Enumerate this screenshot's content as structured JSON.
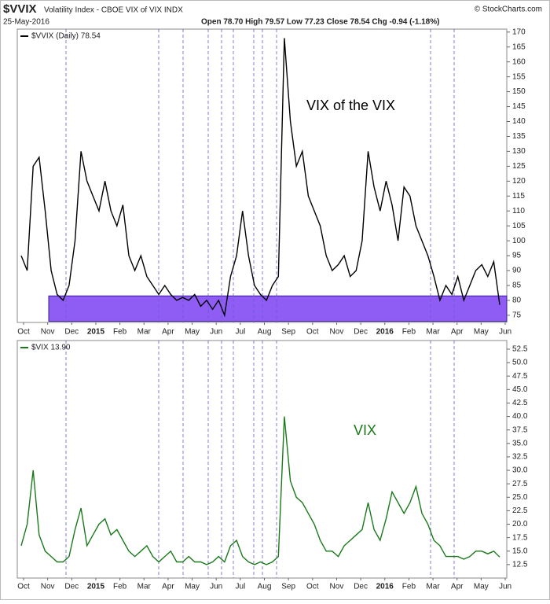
{
  "header": {
    "symbol": "$VVIX",
    "name": "Volatility Index - CBOE VIX of VIX INDX",
    "date": "25-May-2016",
    "quote": "Open 78.70  High 79.57  Low 77.23  Close 78.54  Chg -0.94 (-1.18%)",
    "source": "© StockCharts.com"
  },
  "chart_data": [
    {
      "type": "line",
      "legend": "$VVIX (Daily) 78.54",
      "annotation": "VIX of the VIX",
      "xticks": [
        "Oct",
        "Nov",
        "Dec",
        "2015",
        "Feb",
        "Mar",
        "Apr",
        "May",
        "Jun",
        "Jul",
        "Aug",
        "Sep",
        "Oct",
        "Nov",
        "Dec",
        "2016",
        "Feb",
        "Mar",
        "Apr",
        "May",
        "Jun"
      ],
      "series": [
        {
          "name": "$VVIX",
          "color": "#000000",
          "values": [
            95,
            90,
            125,
            128,
            110,
            90,
            82,
            80,
            85,
            100,
            130,
            120,
            115,
            110,
            120,
            110,
            105,
            112,
            95,
            90,
            95,
            88,
            85,
            82,
            85,
            82,
            80,
            81,
            80,
            82,
            78,
            80,
            77,
            80,
            75,
            88,
            95,
            110,
            95,
            85,
            82,
            80,
            85,
            88,
            168,
            140,
            125,
            130,
            115,
            110,
            105,
            95,
            90,
            92,
            95,
            88,
            90,
            100,
            130,
            118,
            110,
            120,
            112,
            100,
            118,
            115,
            105,
            100,
            95,
            88,
            80,
            85,
            82,
            88,
            80,
            85,
            90,
            92,
            88,
            93,
            78.54
          ]
        }
      ],
      "highlight_range": [
        73,
        81.5
      ],
      "highlight_color": "#7b3ff2",
      "ylim": [
        72.6,
        171
      ],
      "yticks": [
        75,
        80,
        85,
        90,
        95,
        100,
        105,
        110,
        115,
        120,
        125,
        130,
        135,
        140,
        145,
        150,
        155,
        160,
        165,
        170
      ],
      "grid": false
    },
    {
      "type": "line",
      "legend": "$VIX 13.90",
      "annotation": "VIX",
      "xticks": [
        "Oct",
        "Nov",
        "Dec",
        "2015",
        "Feb",
        "Mar",
        "Apr",
        "May",
        "Jun",
        "Jul",
        "Aug",
        "Sep",
        "Oct",
        "Nov",
        "Dec",
        "2016",
        "Feb",
        "Mar",
        "Apr",
        "May",
        "Jun"
      ],
      "series": [
        {
          "name": "$VIX",
          "color": "#1a7a1a",
          "values": [
            16,
            20,
            30,
            18,
            15,
            14,
            13,
            13,
            14,
            19,
            23,
            16,
            18,
            20,
            21,
            18,
            19,
            17,
            15,
            14,
            15,
            16,
            14,
            13,
            14,
            15,
            13,
            13,
            14,
            13,
            13,
            12.5,
            13,
            14,
            13,
            16,
            17,
            14,
            13,
            12.5,
            13,
            12.5,
            13,
            14,
            40,
            28,
            25,
            24,
            22,
            20,
            17,
            15,
            15,
            14,
            16,
            17,
            18,
            19,
            24,
            19,
            17,
            21,
            26,
            24,
            22,
            24,
            27,
            22,
            20,
            17,
            16,
            14,
            14,
            14,
            13.5,
            14,
            15,
            15,
            14.5,
            15,
            13.9
          ]
        }
      ],
      "ylim": [
        10,
        54.1
      ],
      "yticks": [
        12.5,
        {
          "value": 15,
          "label": "15.0"
        },
        17.5,
        {
          "value": 20,
          "label": "20.0"
        },
        22.5,
        {
          "value": 25,
          "label": "25.0"
        },
        27.5,
        {
          "value": 30,
          "label": "30.0"
        },
        32.5,
        {
          "value": 35,
          "label": "35.0"
        },
        37.5,
        {
          "value": 40,
          "label": "40.0"
        },
        42.5,
        {
          "value": 45,
          "label": "45.0"
        },
        47.5,
        {
          "value": 50,
          "label": "50.0"
        },
        52.5
      ],
      "grid": false
    }
  ]
}
